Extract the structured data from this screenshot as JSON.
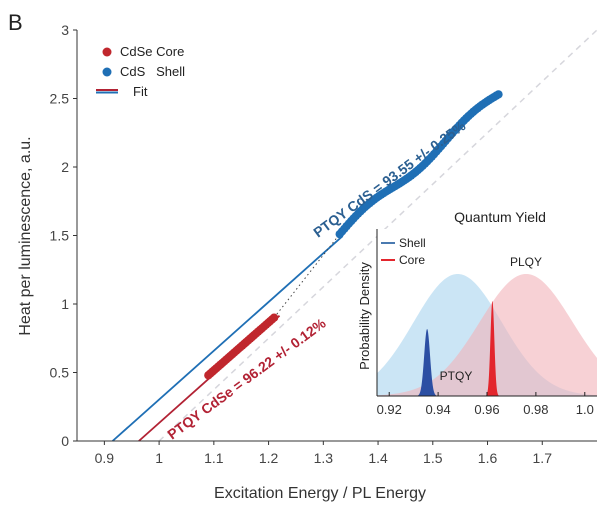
{
  "panel_label": "B",
  "chart_data": {
    "main": {
      "type": "scatter",
      "xlabel": "Excitation Energy / PL Energy",
      "ylabel": "Heat per luminescence, a.u.",
      "xlim": [
        0.85,
        1.8
      ],
      "ylim": [
        0,
        3
      ],
      "x_ticks": [
        0.9,
        1,
        1.1,
        1.2,
        1.3,
        1.4,
        1.5,
        1.6,
        1.7
      ],
      "x_tick_labels": [
        "0.9",
        "1",
        "1.1",
        "1.2",
        "1.3",
        "1.4",
        "1.5",
        "1.6",
        "1.7"
      ],
      "y_ticks": [
        0,
        0.5,
        1,
        1.5,
        2,
        2.5,
        3
      ],
      "y_tick_labels": [
        "0",
        "0.5",
        "1",
        "1.5",
        "2",
        "2.5",
        "3"
      ],
      "legend": {
        "placement": "top-left",
        "core_label": "CdSe Core",
        "shell_label": "CdS   Shell",
        "fit_label": "Fit"
      },
      "series": [
        {
          "name": "CdSe Core",
          "color": "#c0272d",
          "x_range": [
            1.09,
            1.21
          ],
          "y_range": [
            0.48,
            0.9
          ],
          "points": 34
        },
        {
          "name": "CdS   Shell",
          "color": "#1f6fb5",
          "x_range": [
            1.33,
            1.62
          ],
          "y_range": [
            1.51,
            2.53
          ],
          "points": 70
        }
      ],
      "fits": [
        {
          "series": "CdS   Shell",
          "color": "#1f6fb5",
          "x_intercept": 0.915,
          "slope": 3.56
        },
        {
          "series": "CdSe Core",
          "color": "#b22234",
          "x_intercept": 0.963,
          "slope": 3.56
        }
      ],
      "reference_line": {
        "style": "dashed",
        "color": "#d6d6dc",
        "from": [
          1.0,
          0.0
        ],
        "to": [
          1.8,
          3.0
        ]
      },
      "annotations": [
        {
          "text": "PTQY CdS = 93.55 +/- 0.25%",
          "color": "#2b5f91"
        },
        {
          "text": "PTQY CdSe = 96.22 +/- 0.12%",
          "color": "#b22234"
        }
      ]
    },
    "inset": {
      "type": "area",
      "title": "Quantum Yield",
      "ylabel": "Probability Density",
      "xlim": [
        0.915,
        1.005
      ],
      "x_ticks": [
        0.92,
        0.94,
        0.96,
        0.98,
        1.0
      ],
      "x_tick_labels": [
        "0.92",
        "0.94",
        "0.96",
        "0.98",
        "1.0"
      ],
      "legend": {
        "placement": "top-left",
        "shell_label": "Shell",
        "core_label": "Core"
      },
      "labels": {
        "plqy": "PLQY",
        "ptqy": "PTQY"
      },
      "series": [
        {
          "name": "PLQY Shell",
          "kind": "broad",
          "mean": 0.948,
          "sd": 0.018,
          "color": "#a8d4ef"
        },
        {
          "name": "PLQY Core",
          "kind": "broad",
          "mean": 0.976,
          "sd": 0.019,
          "color": "#f2b3b9"
        },
        {
          "name": "PTQY Shell",
          "kind": "narrow",
          "mean": 0.9355,
          "sd": 0.0012,
          "color": "#2c4fa3"
        },
        {
          "name": "PTQY Core",
          "kind": "narrow",
          "mean": 0.9622,
          "sd": 0.0008,
          "color": "#e3262d"
        }
      ]
    }
  }
}
